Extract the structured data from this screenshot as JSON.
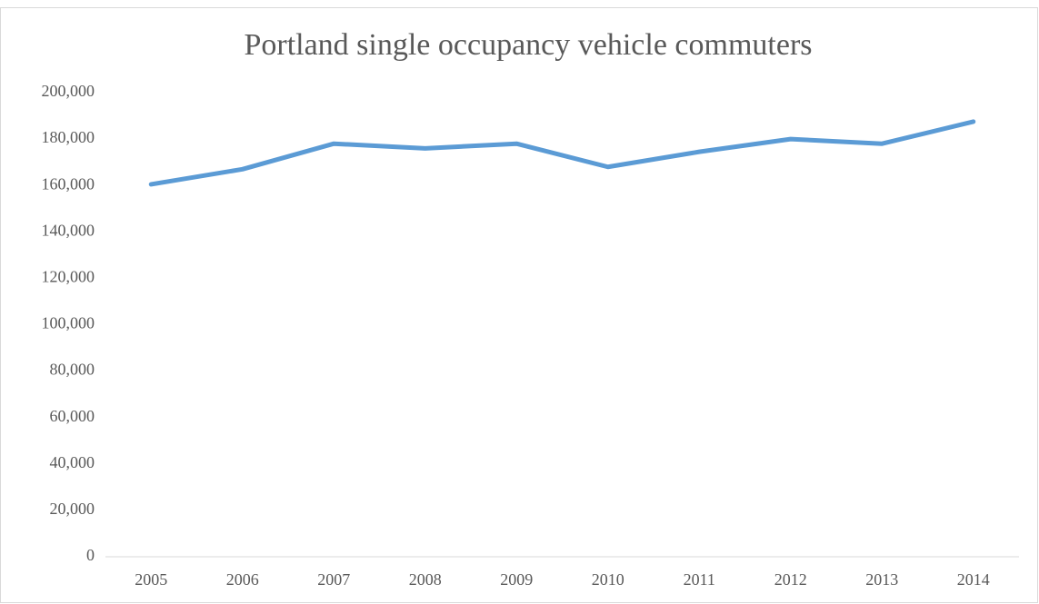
{
  "chart_data": {
    "type": "line",
    "title": "Portland single occupancy vehicle commuters",
    "categories": [
      "2005",
      "2006",
      "2007",
      "2008",
      "2009",
      "2010",
      "2011",
      "2012",
      "2013",
      "2014"
    ],
    "values": [
      160500,
      167000,
      178000,
      176000,
      178000,
      168000,
      174500,
      180000,
      178000,
      187500
    ],
    "color": "#5b9bd5",
    "ylim": [
      0,
      200000
    ],
    "yticks": [
      0,
      {
        "value": 20000,
        "label": "20,000"
      },
      {
        "value": 40000,
        "label": "40,000"
      },
      {
        "value": 60000,
        "label": "60,000"
      },
      {
        "value": 80000,
        "label": "80,000"
      },
      {
        "value": 100000,
        "label": "100,000"
      },
      {
        "value": 120000,
        "label": "120,000"
      },
      {
        "value": 140000,
        "label": "140,000"
      },
      {
        "value": 160000,
        "label": "160,000"
      },
      {
        "value": 180000,
        "label": "180,000"
      },
      {
        "value": 200000,
        "label": "200,000"
      }
    ],
    "grid": false
  }
}
